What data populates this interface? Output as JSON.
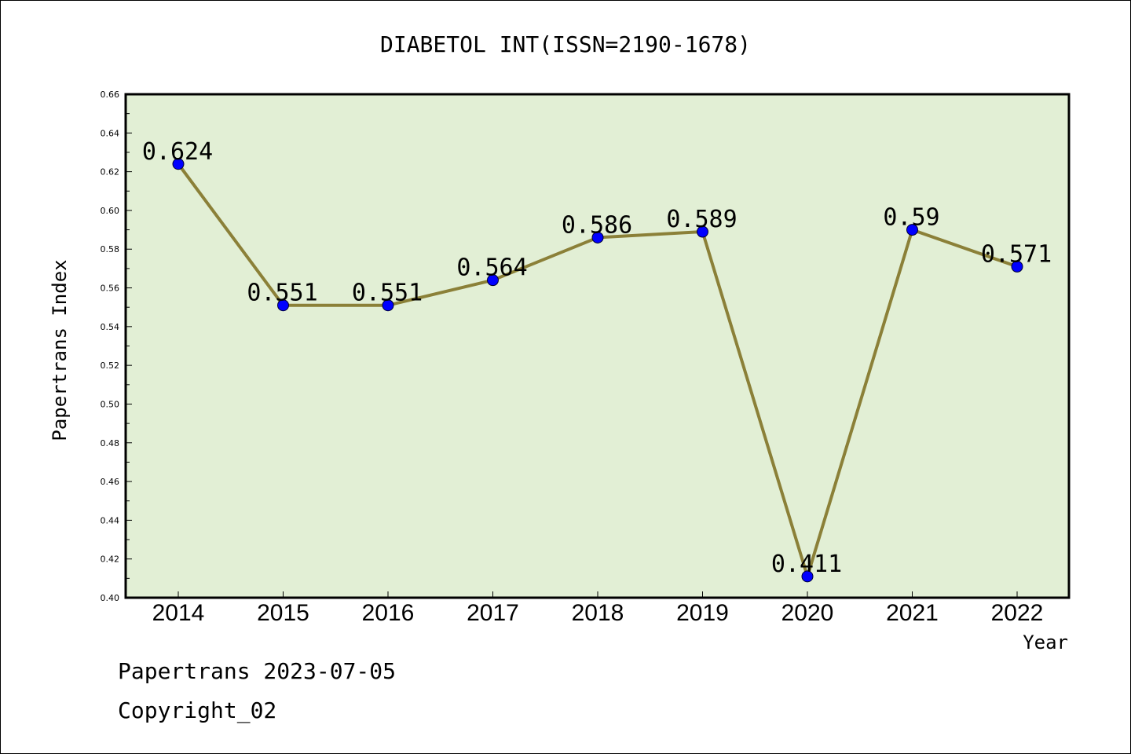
{
  "chart_data": {
    "type": "line",
    "title": "DIABETOL INT(ISSN=2190-1678)",
    "xlabel": "Year",
    "ylabel": "Papertrans Index",
    "x": [
      "2014",
      "2015",
      "2016",
      "2017",
      "2018",
      "2019",
      "2020",
      "2021",
      "2022"
    ],
    "values": [
      0.624,
      0.551,
      0.551,
      0.564,
      0.586,
      0.589,
      0.411,
      0.59,
      0.571
    ],
    "data_labels": [
      "0.624",
      "0.551",
      "0.551",
      "0.564",
      "0.586",
      "0.589",
      "0.411",
      "0.59",
      "0.571"
    ],
    "ylim": [
      0.4,
      0.66
    ],
    "yticks": [
      "0.40",
      "0.42",
      "0.44",
      "0.46",
      "0.48",
      "0.50",
      "0.52",
      "0.54",
      "0.56",
      "0.58",
      "0.60",
      "0.62",
      "0.64",
      "0.66"
    ],
    "grid": false,
    "colors": {
      "plot_background": "#e2efd5",
      "line": "#8b8038",
      "marker": "#0000ff"
    }
  },
  "footer": {
    "line1": "Papertrans 2023-07-05",
    "line2": "Copyright_02"
  }
}
